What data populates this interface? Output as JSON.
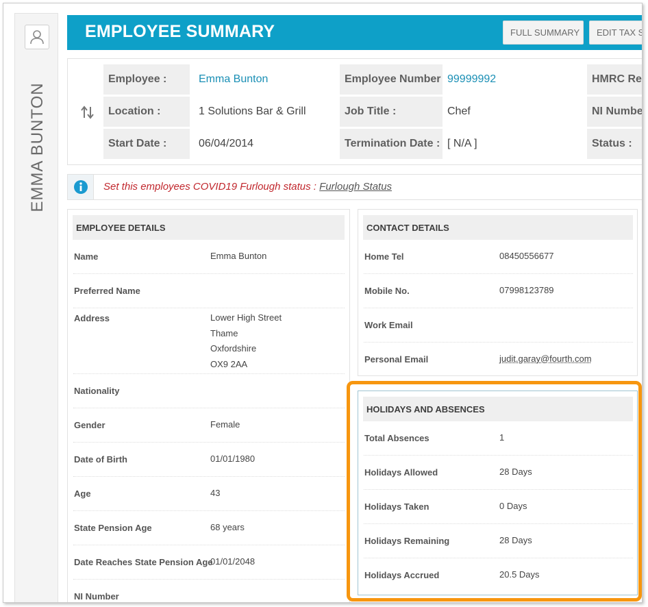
{
  "side": {
    "name": "EMMA BUNTON"
  },
  "header": {
    "title": "EMPLOYEE SUMMARY",
    "buttons": [
      "FULL SUMMARY",
      "EDIT TAX ST"
    ]
  },
  "info": {
    "row1": {
      "l1": "Employee :",
      "v1": "Emma Bunton",
      "l2": "Employee Number :",
      "v2": "99999992",
      "l3": "HMRC Ref."
    },
    "row2": {
      "l1": "Location :",
      "v1": "1 Solutions Bar & Grill",
      "l2": "Job Title :",
      "v2": "Chef",
      "l3": "NI Number"
    },
    "row3": {
      "l1": "Start Date :",
      "v1": "06/04/2014",
      "l2": "Termination Date :",
      "v2": "[ N/A ]",
      "l3": "Status :"
    }
  },
  "banner": {
    "text": "Set this employees COVID19 Furlough status : ",
    "link": "Furlough Status"
  },
  "employee_details": {
    "title": "EMPLOYEE DETAILS",
    "rows": [
      {
        "label": "Name",
        "value": "Emma Bunton"
      },
      {
        "label": "Preferred Name",
        "value": ""
      },
      {
        "label": "Address",
        "value_lines": [
          "Lower High Street",
          "Thame",
          "Oxfordshire",
          "OX9 2AA"
        ]
      },
      {
        "label": "Nationality",
        "value": ""
      },
      {
        "label": "Gender",
        "value": "Female"
      },
      {
        "label": "Date of Birth",
        "value": "01/01/1980"
      },
      {
        "label": "Age",
        "value": "43"
      },
      {
        "label": "State Pension Age",
        "value": "68 years"
      },
      {
        "label": "Date Reaches State Pension Age",
        "value": "01/01/2048"
      },
      {
        "label": "NI Number",
        "value": ""
      }
    ]
  },
  "contact_details": {
    "title": "CONTACT DETAILS",
    "rows": [
      {
        "label": "Home Tel",
        "value": "08450556677"
      },
      {
        "label": "Mobile No.",
        "value": "07998123789"
      },
      {
        "label": "Work Email",
        "value": ""
      },
      {
        "label": "Personal Email",
        "value": "judit.garay@fourth.com"
      }
    ]
  },
  "holidays": {
    "title": "HOLIDAYS AND ABSENCES",
    "rows": [
      {
        "label": "Total Absences",
        "value": "1"
      },
      {
        "label": "Holidays Allowed",
        "value": "28 Days"
      },
      {
        "label": "Holidays Taken",
        "value": "0 Days"
      },
      {
        "label": "Holidays Remaining",
        "value": "28 Days"
      },
      {
        "label": "Holidays Accrued",
        "value": "20.5 Days"
      }
    ]
  },
  "colors": {
    "header": "#0ea0c8",
    "link": "#1a8fb5",
    "banner_text": "#c1272d",
    "highlight": "#f7960f"
  },
  "icons": {
    "avatar": "user-icon",
    "sort": "sort-arrows-icon",
    "info": "info-icon"
  }
}
